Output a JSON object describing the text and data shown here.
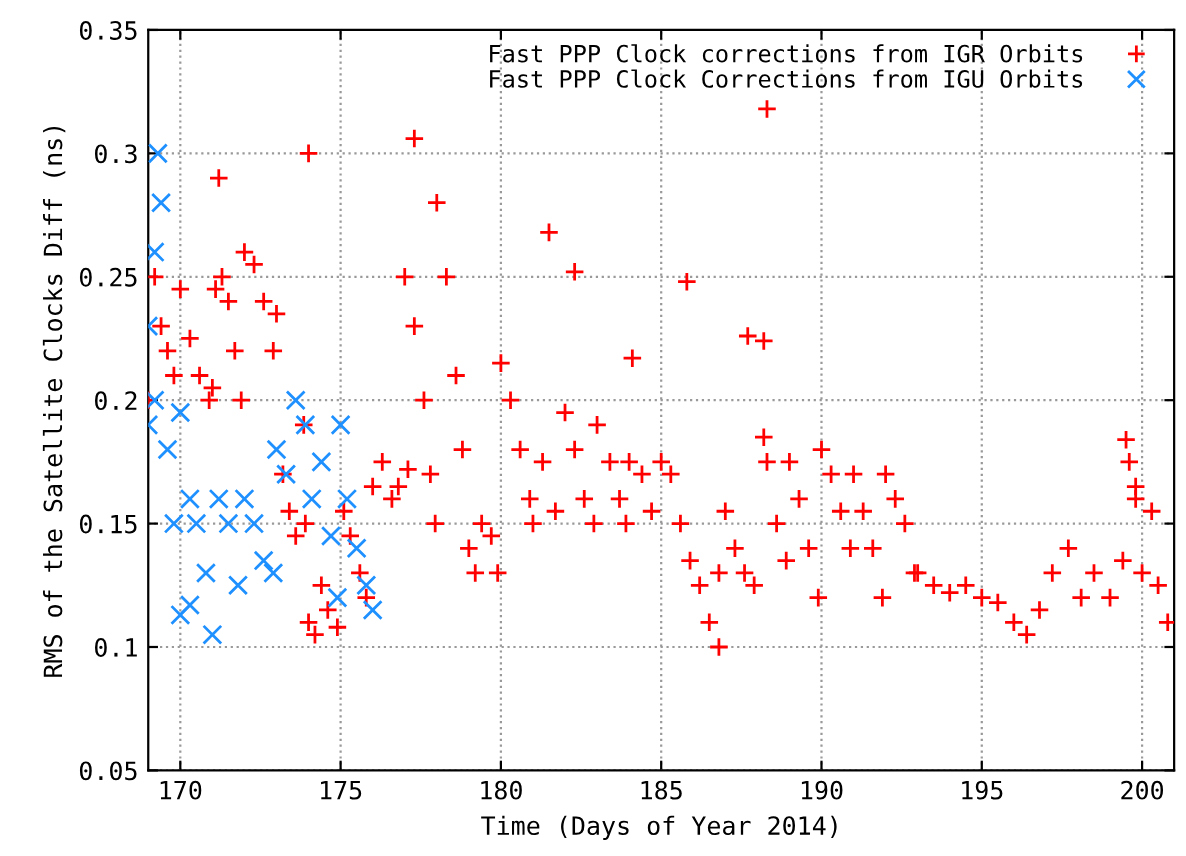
{
  "chart_data": {
    "type": "scatter",
    "xlabel": "Time (Days of Year 2014)",
    "ylabel": "RMS of the Satellite Clocks Diff (ns)",
    "xlim": [
      169,
      201
    ],
    "xticks": [
      170,
      175,
      180,
      185,
      190,
      195,
      200
    ],
    "ylim": [
      0.05,
      0.35
    ],
    "yticks": [
      0.05,
      0.1,
      0.15,
      0.2,
      0.25,
      0.3,
      0.35
    ],
    "grid": true,
    "legend": "top right",
    "series": [
      {
        "name": "Fast PPP Clock corrections from IGR Orbits",
        "color": "#ff0000",
        "marker": "cross",
        "x": [
          169.0,
          169.2,
          169.4,
          169.6,
          169.8,
          170.0,
          170.3,
          170.6,
          170.9,
          171.0,
          171.1,
          171.2,
          171.3,
          171.5,
          171.7,
          171.9,
          172.0,
          172.3,
          172.6,
          172.9,
          173.0,
          173.2,
          173.4,
          173.6,
          173.85,
          173.9,
          174.0,
          174.0,
          174.2,
          174.4,
          174.6,
          174.9,
          175.1,
          175.3,
          175.6,
          175.8,
          176.0,
          176.3,
          176.6,
          176.8,
          177.1,
          177.3,
          177.0,
          177.3,
          177.6,
          177.8,
          177.95,
          178.0,
          178.3,
          178.6,
          178.8,
          179.0,
          179.2,
          179.4,
          179.7,
          179.9,
          180.0,
          180.3,
          180.6,
          180.9,
          181.0,
          181.3,
          181.5,
          181.7,
          182.0,
          182.3,
          182.3,
          182.6,
          182.9,
          183.0,
          183.4,
          183.7,
          183.9,
          184.1,
          184.0,
          184.4,
          184.7,
          185.0,
          185.3,
          185.6,
          185.8,
          185.9,
          186.2,
          186.5,
          186.8,
          186.8,
          187.0,
          187.3,
          187.6,
          187.9,
          187.7,
          188.2,
          188.2,
          188.3,
          188.3,
          188.6,
          188.9,
          189.0,
          189.3,
          189.6,
          189.9,
          190.0,
          190.3,
          190.6,
          190.9,
          191.0,
          191.3,
          191.6,
          191.9,
          192.0,
          192.3,
          192.6,
          192.9,
          193.0,
          193.5,
          194.0,
          194.5,
          195.0,
          195.5,
          196.0,
          196.4,
          196.8,
          197.2,
          197.7,
          198.1,
          198.5,
          199.0,
          199.4,
          199.5,
          199.6,
          199.8,
          199.8,
          200.0,
          200.3,
          200.5,
          200.8
        ],
        "values": [
          0.2,
          0.25,
          0.23,
          0.22,
          0.21,
          0.245,
          0.225,
          0.21,
          0.2,
          0.205,
          0.245,
          0.29,
          0.25,
          0.24,
          0.22,
          0.2,
          0.26,
          0.255,
          0.24,
          0.22,
          0.235,
          0.17,
          0.155,
          0.145,
          0.19,
          0.15,
          0.3,
          0.11,
          0.105,
          0.125,
          0.115,
          0.108,
          0.155,
          0.145,
          0.13,
          0.12,
          0.165,
          0.175,
          0.16,
          0.165,
          0.172,
          0.306,
          0.25,
          0.23,
          0.2,
          0.17,
          0.15,
          0.28,
          0.25,
          0.21,
          0.18,
          0.14,
          0.13,
          0.15,
          0.145,
          0.13,
          0.215,
          0.2,
          0.18,
          0.16,
          0.15,
          0.175,
          0.268,
          0.155,
          0.195,
          0.252,
          0.18,
          0.16,
          0.15,
          0.19,
          0.175,
          0.16,
          0.15,
          0.217,
          0.175,
          0.17,
          0.155,
          0.175,
          0.17,
          0.15,
          0.248,
          0.135,
          0.125,
          0.11,
          0.1,
          0.13,
          0.155,
          0.14,
          0.13,
          0.125,
          0.226,
          0.224,
          0.185,
          0.318,
          0.175,
          0.15,
          0.135,
          0.175,
          0.16,
          0.14,
          0.12,
          0.18,
          0.17,
          0.155,
          0.14,
          0.17,
          0.155,
          0.14,
          0.12,
          0.17,
          0.16,
          0.15,
          0.13,
          0.13,
          0.125,
          0.122,
          0.125,
          0.12,
          0.118,
          0.11,
          0.105,
          0.115,
          0.13,
          0.14,
          0.12,
          0.13,
          0.12,
          0.135,
          0.184,
          0.175,
          0.165,
          0.16,
          0.13,
          0.155,
          0.125,
          0.11
        ]
      },
      {
        "name": "Fast PPP Clock Corrections from IGU Orbits",
        "color": "#1e90ff",
        "marker": "x",
        "x": [
          169.0,
          169.0,
          169.2,
          169.3,
          169.4,
          169.2,
          169.6,
          169.8,
          170.0,
          170.3,
          170.5,
          170.8,
          171.0,
          170.0,
          170.3,
          171.2,
          171.5,
          171.8,
          172.0,
          172.3,
          172.6,
          172.9,
          173.0,
          173.3,
          173.6,
          173.9,
          174.1,
          174.4,
          174.7,
          174.9,
          175.0,
          175.2,
          175.5,
          175.8,
          176.0
        ],
        "values": [
          0.19,
          0.23,
          0.26,
          0.3,
          0.28,
          0.2,
          0.18,
          0.15,
          0.195,
          0.16,
          0.15,
          0.13,
          0.105,
          0.113,
          0.117,
          0.16,
          0.15,
          0.125,
          0.16,
          0.15,
          0.135,
          0.13,
          0.18,
          0.17,
          0.2,
          0.19,
          0.16,
          0.175,
          0.145,
          0.12,
          0.19,
          0.16,
          0.14,
          0.125,
          0.115
        ]
      }
    ]
  }
}
